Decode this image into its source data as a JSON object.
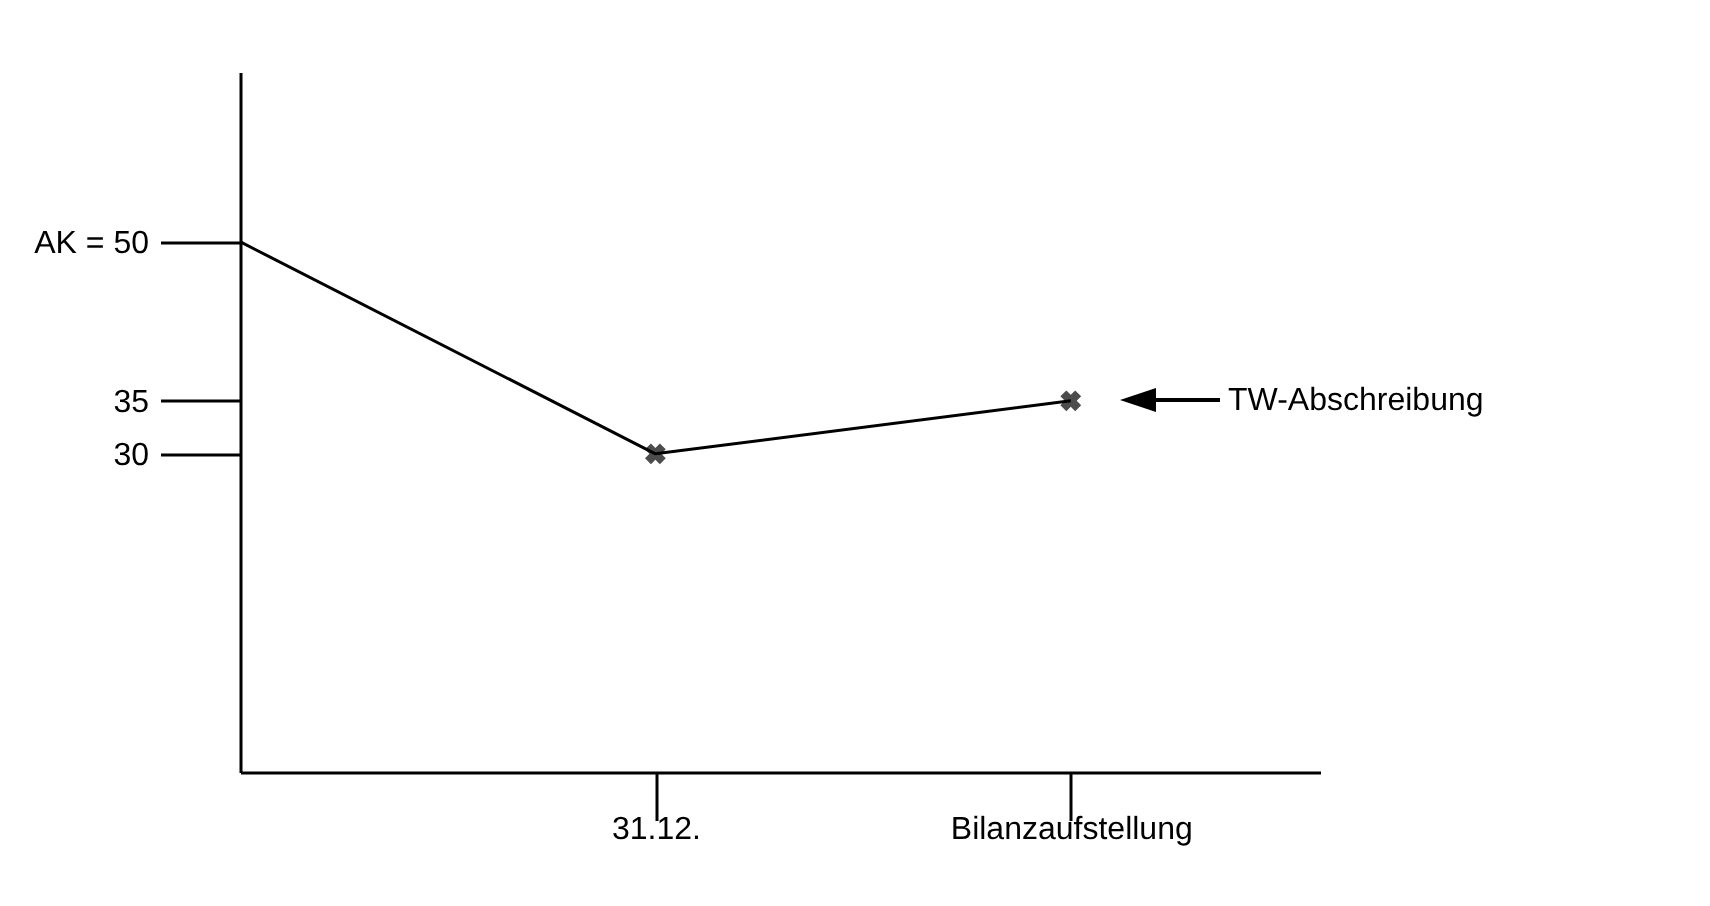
{
  "chart_data": {
    "type": "line",
    "categories": [
      null,
      "31.12.",
      "Bilanzaufstellung"
    ],
    "series": [
      {
        "color": "#000000",
        "values": [
          50,
          30,
          35
        ],
        "marker": "none"
      },
      {
        "type": "scatter",
        "color": "#000000",
        "x": [
          "31.12.",
          "Bilanzaufstellung"
        ],
        "values": [
          30,
          35
        ],
        "marker": "cross"
      }
    ],
    "ylim": [
      0,
      66
    ],
    "yticks": [
      {
        "value": 30,
        "label": "30"
      },
      {
        "value": 35,
        "label": "35"
      },
      {
        "value": 50,
        "label": "AK = 50"
      }
    ],
    "annotations": [
      "TW-Abschreibung"
    ]
  }
}
